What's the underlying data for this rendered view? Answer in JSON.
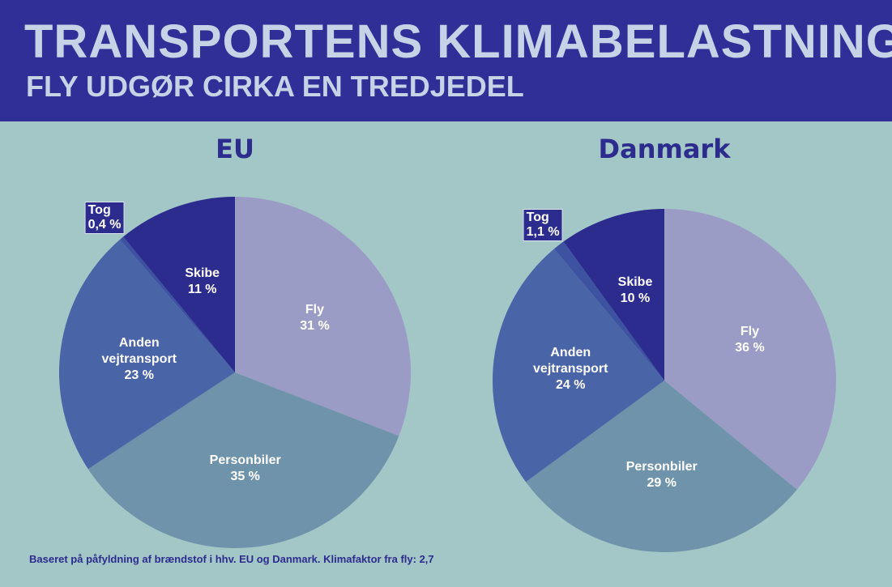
{
  "header": {
    "title": "TRANSPORTENS KLIMABELASTNING",
    "subtitle": "FLY UDGØR CIRKA EN TREDJEDEL"
  },
  "footnote": "Baseret på påfyldning af brændstof i hhv. EU og Danmark. Klimafaktor fra fly: 2,7",
  "chart_data": [
    {
      "type": "pie",
      "title": "EU",
      "categories": [
        "Fly",
        "Personbiler",
        "Anden vejtransport",
        "Tog",
        "Skibe"
      ],
      "values": [
        31,
        35,
        23,
        0.4,
        11
      ],
      "value_labels": [
        "31 %",
        "35 %",
        "23 %",
        "0,4 %",
        "11 %"
      ],
      "colors": [
        "#9a9cc6",
        "#6f93aa",
        "#4a64a8",
        "#3d52a0",
        "#2c2c8e"
      ]
    },
    {
      "type": "pie",
      "title": "Danmark",
      "categories": [
        "Fly",
        "Personbiler",
        "Anden vejtransport",
        "Tog",
        "Skibe"
      ],
      "values": [
        36,
        29,
        24,
        1.1,
        10
      ],
      "value_labels": [
        "36 %",
        "29 %",
        "24 %",
        "1,1 %",
        "10 %"
      ],
      "colors": [
        "#9a9cc6",
        "#6f93aa",
        "#4a64a8",
        "#3d52a0",
        "#2c2c8e"
      ]
    }
  ]
}
